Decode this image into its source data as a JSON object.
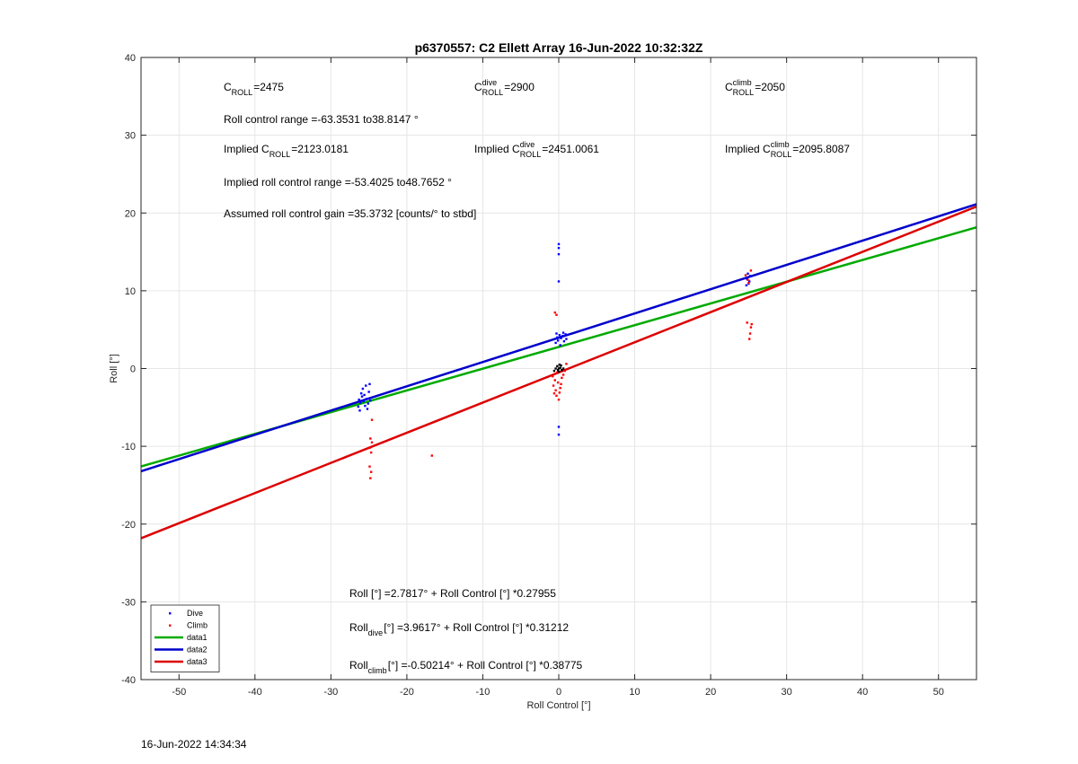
{
  "chart_data": {
    "type": "scatter",
    "title": "p6370557: C2 Ellett Array 16-Jun-2022 10:32:32Z",
    "xlabel": "Roll Control [°]",
    "ylabel": "Roll [°]",
    "xlim": [
      -55,
      55
    ],
    "ylim": [
      -40,
      40
    ],
    "xticks": [
      -50,
      -40,
      -30,
      -20,
      -10,
      0,
      10,
      20,
      30,
      40,
      50
    ],
    "yticks": [
      -40,
      -30,
      -20,
      -10,
      0,
      10,
      20,
      30,
      40
    ],
    "grid": true,
    "legend_position": "bottom-left",
    "series": [
      {
        "name": "Dive",
        "kind": "points",
        "color": "#0000ff",
        "points": [
          [
            -26.3,
            -4.0
          ],
          [
            -26.1,
            -4.4
          ],
          [
            -25.9,
            -3.6
          ],
          [
            -25.7,
            -4.2
          ],
          [
            -25.5,
            -4.8
          ],
          [
            -26.0,
            -3.2
          ],
          [
            -25.3,
            -3.9
          ],
          [
            -25.1,
            -4.5
          ],
          [
            -25.8,
            -2.6
          ],
          [
            -25.4,
            -2.2
          ],
          [
            -24.9,
            -2.0
          ],
          [
            -25.2,
            -5.2
          ],
          [
            -26.4,
            -4.9
          ],
          [
            -24.8,
            -4.1
          ],
          [
            -25.6,
            -3.4
          ],
          [
            -26.2,
            -5.4
          ],
          [
            -25.0,
            -3.0
          ],
          [
            0.0,
            16.0
          ],
          [
            0.0,
            15.5
          ],
          [
            0.0,
            14.7
          ],
          [
            0.0,
            11.2
          ],
          [
            -0.2,
            4.0
          ],
          [
            -0.1,
            3.6
          ],
          [
            0.1,
            4.3
          ],
          [
            0.3,
            3.9
          ],
          [
            0.5,
            4.2
          ],
          [
            0.7,
            3.5
          ],
          [
            0.9,
            4.4
          ],
          [
            -0.4,
            3.3
          ],
          [
            0.2,
            3.0
          ],
          [
            0.6,
            4.6
          ],
          [
            1.0,
            3.8
          ],
          [
            -0.3,
            4.5
          ],
          [
            0.0,
            -7.5
          ],
          [
            0.0,
            -8.5
          ],
          [
            24.8,
            11.5
          ],
          [
            25.0,
            10.9
          ],
          [
            25.2,
            11.9
          ],
          [
            24.9,
            12.2
          ],
          [
            25.1,
            11.2
          ],
          [
            24.7,
            10.7
          ]
        ]
      },
      {
        "name": "Climb",
        "kind": "points",
        "color": "#ff0000",
        "points": [
          [
            -24.6,
            -6.6
          ],
          [
            -24.8,
            -9.0
          ],
          [
            -24.6,
            -9.5
          ],
          [
            -24.9,
            -10.2
          ],
          [
            -24.7,
            -10.8
          ],
          [
            -24.9,
            -12.6
          ],
          [
            -24.7,
            -13.3
          ],
          [
            -24.8,
            -14.1
          ],
          [
            -16.7,
            -11.2
          ],
          [
            -0.8,
            -1.0
          ],
          [
            -0.7,
            -2.2
          ],
          [
            -0.6,
            -3.2
          ],
          [
            -0.5,
            -1.5
          ],
          [
            -0.4,
            -2.8
          ],
          [
            -0.3,
            -3.5
          ],
          [
            -0.2,
            -0.5
          ],
          [
            -0.1,
            -1.8
          ],
          [
            0.0,
            -4.0
          ],
          [
            0.2,
            -2.5
          ],
          [
            0.4,
            -1.2
          ],
          [
            0.6,
            -0.8
          ],
          [
            0.8,
            -0.3
          ],
          [
            1.0,
            0.6
          ],
          [
            -0.5,
            7.2
          ],
          [
            -0.3,
            6.9
          ],
          [
            0.1,
            -3.1
          ],
          [
            0.3,
            -2.0
          ],
          [
            24.9,
            11.4
          ],
          [
            25.0,
            11.0
          ],
          [
            25.3,
            12.6
          ],
          [
            24.6,
            12.0
          ],
          [
            24.8,
            5.9
          ],
          [
            25.4,
            5.7
          ],
          [
            25.3,
            5.3
          ],
          [
            25.2,
            4.5
          ],
          [
            25.1,
            3.8
          ]
        ]
      },
      {
        "name": "",
        "kind": "points",
        "color": "#000000",
        "points": [
          [
            -0.2,
            0.3
          ],
          [
            0.0,
            -0.4
          ],
          [
            0.2,
            0.1
          ],
          [
            0.4,
            -0.2
          ],
          [
            -0.4,
            0.0
          ],
          [
            0.1,
            0.5
          ],
          [
            -0.1,
            -0.2
          ],
          [
            0.3,
            0.4
          ],
          [
            0.6,
            0.0
          ],
          [
            -0.6,
            -0.3
          ],
          [
            0.0,
            0.0
          ]
        ]
      },
      {
        "name": "data1",
        "kind": "line",
        "color": "#00aa00",
        "x": [
          -55,
          55
        ],
        "y": [
          -12.594,
          18.157
        ]
      },
      {
        "name": "data2",
        "kind": "line",
        "color": "#0000cc",
        "x": [
          -55,
          55
        ],
        "y": [
          -13.205,
          21.128
        ]
      },
      {
        "name": "data3",
        "kind": "line",
        "color": "#dd0000",
        "x": [
          -55,
          55
        ],
        "y": [
          -21.828,
          20.824
        ]
      }
    ],
    "annotations": [
      {
        "main": "C",
        "sub": "ROLL",
        "sup": "",
        "tail": "=2475"
      },
      {
        "main": "C",
        "sub": "ROLL",
        "sup": "dive",
        "tail": " =2900"
      },
      {
        "main": "C",
        "sub": "ROLL",
        "sup": "climb",
        "tail": " =2050"
      },
      {
        "main": "Roll control range =-63.3531 to38.8147 °",
        "sub": "",
        "sup": "",
        "tail": ""
      },
      {
        "main": "Implied C",
        "sub": "ROLL",
        "sup": "",
        "tail": " =2123.0181"
      },
      {
        "main": "Implied C",
        "sub": "ROLL",
        "sup": "dive",
        "tail": " =2451.0061"
      },
      {
        "main": "Implied C",
        "sub": "ROLL",
        "sup": "climb",
        "tail": " =2095.8087"
      },
      {
        "main": "Implied roll control range =-53.4025 to48.7652 °",
        "sub": "",
        "sup": "",
        "tail": ""
      },
      {
        "main": "Assumed roll control gain =35.3732 [counts/° to stbd]",
        "sub": "",
        "sup": "",
        "tail": ""
      },
      {
        "main": "Roll [°] =2.7817° + Roll Control [°] *0.27955",
        "sub": "",
        "sup": "",
        "tail": ""
      },
      {
        "main": "Roll",
        "sub": "dive",
        "sup": "",
        "tail": " [°] =3.9617° + Roll Control [°] *0.31212"
      },
      {
        "main": "Roll",
        "sub": "climb",
        "sup": "",
        "tail": " [°] =-0.50214° + Roll Control [°] *0.38775"
      }
    ]
  },
  "footer": {
    "timestamp": "16-Jun-2022 14:34:34"
  }
}
